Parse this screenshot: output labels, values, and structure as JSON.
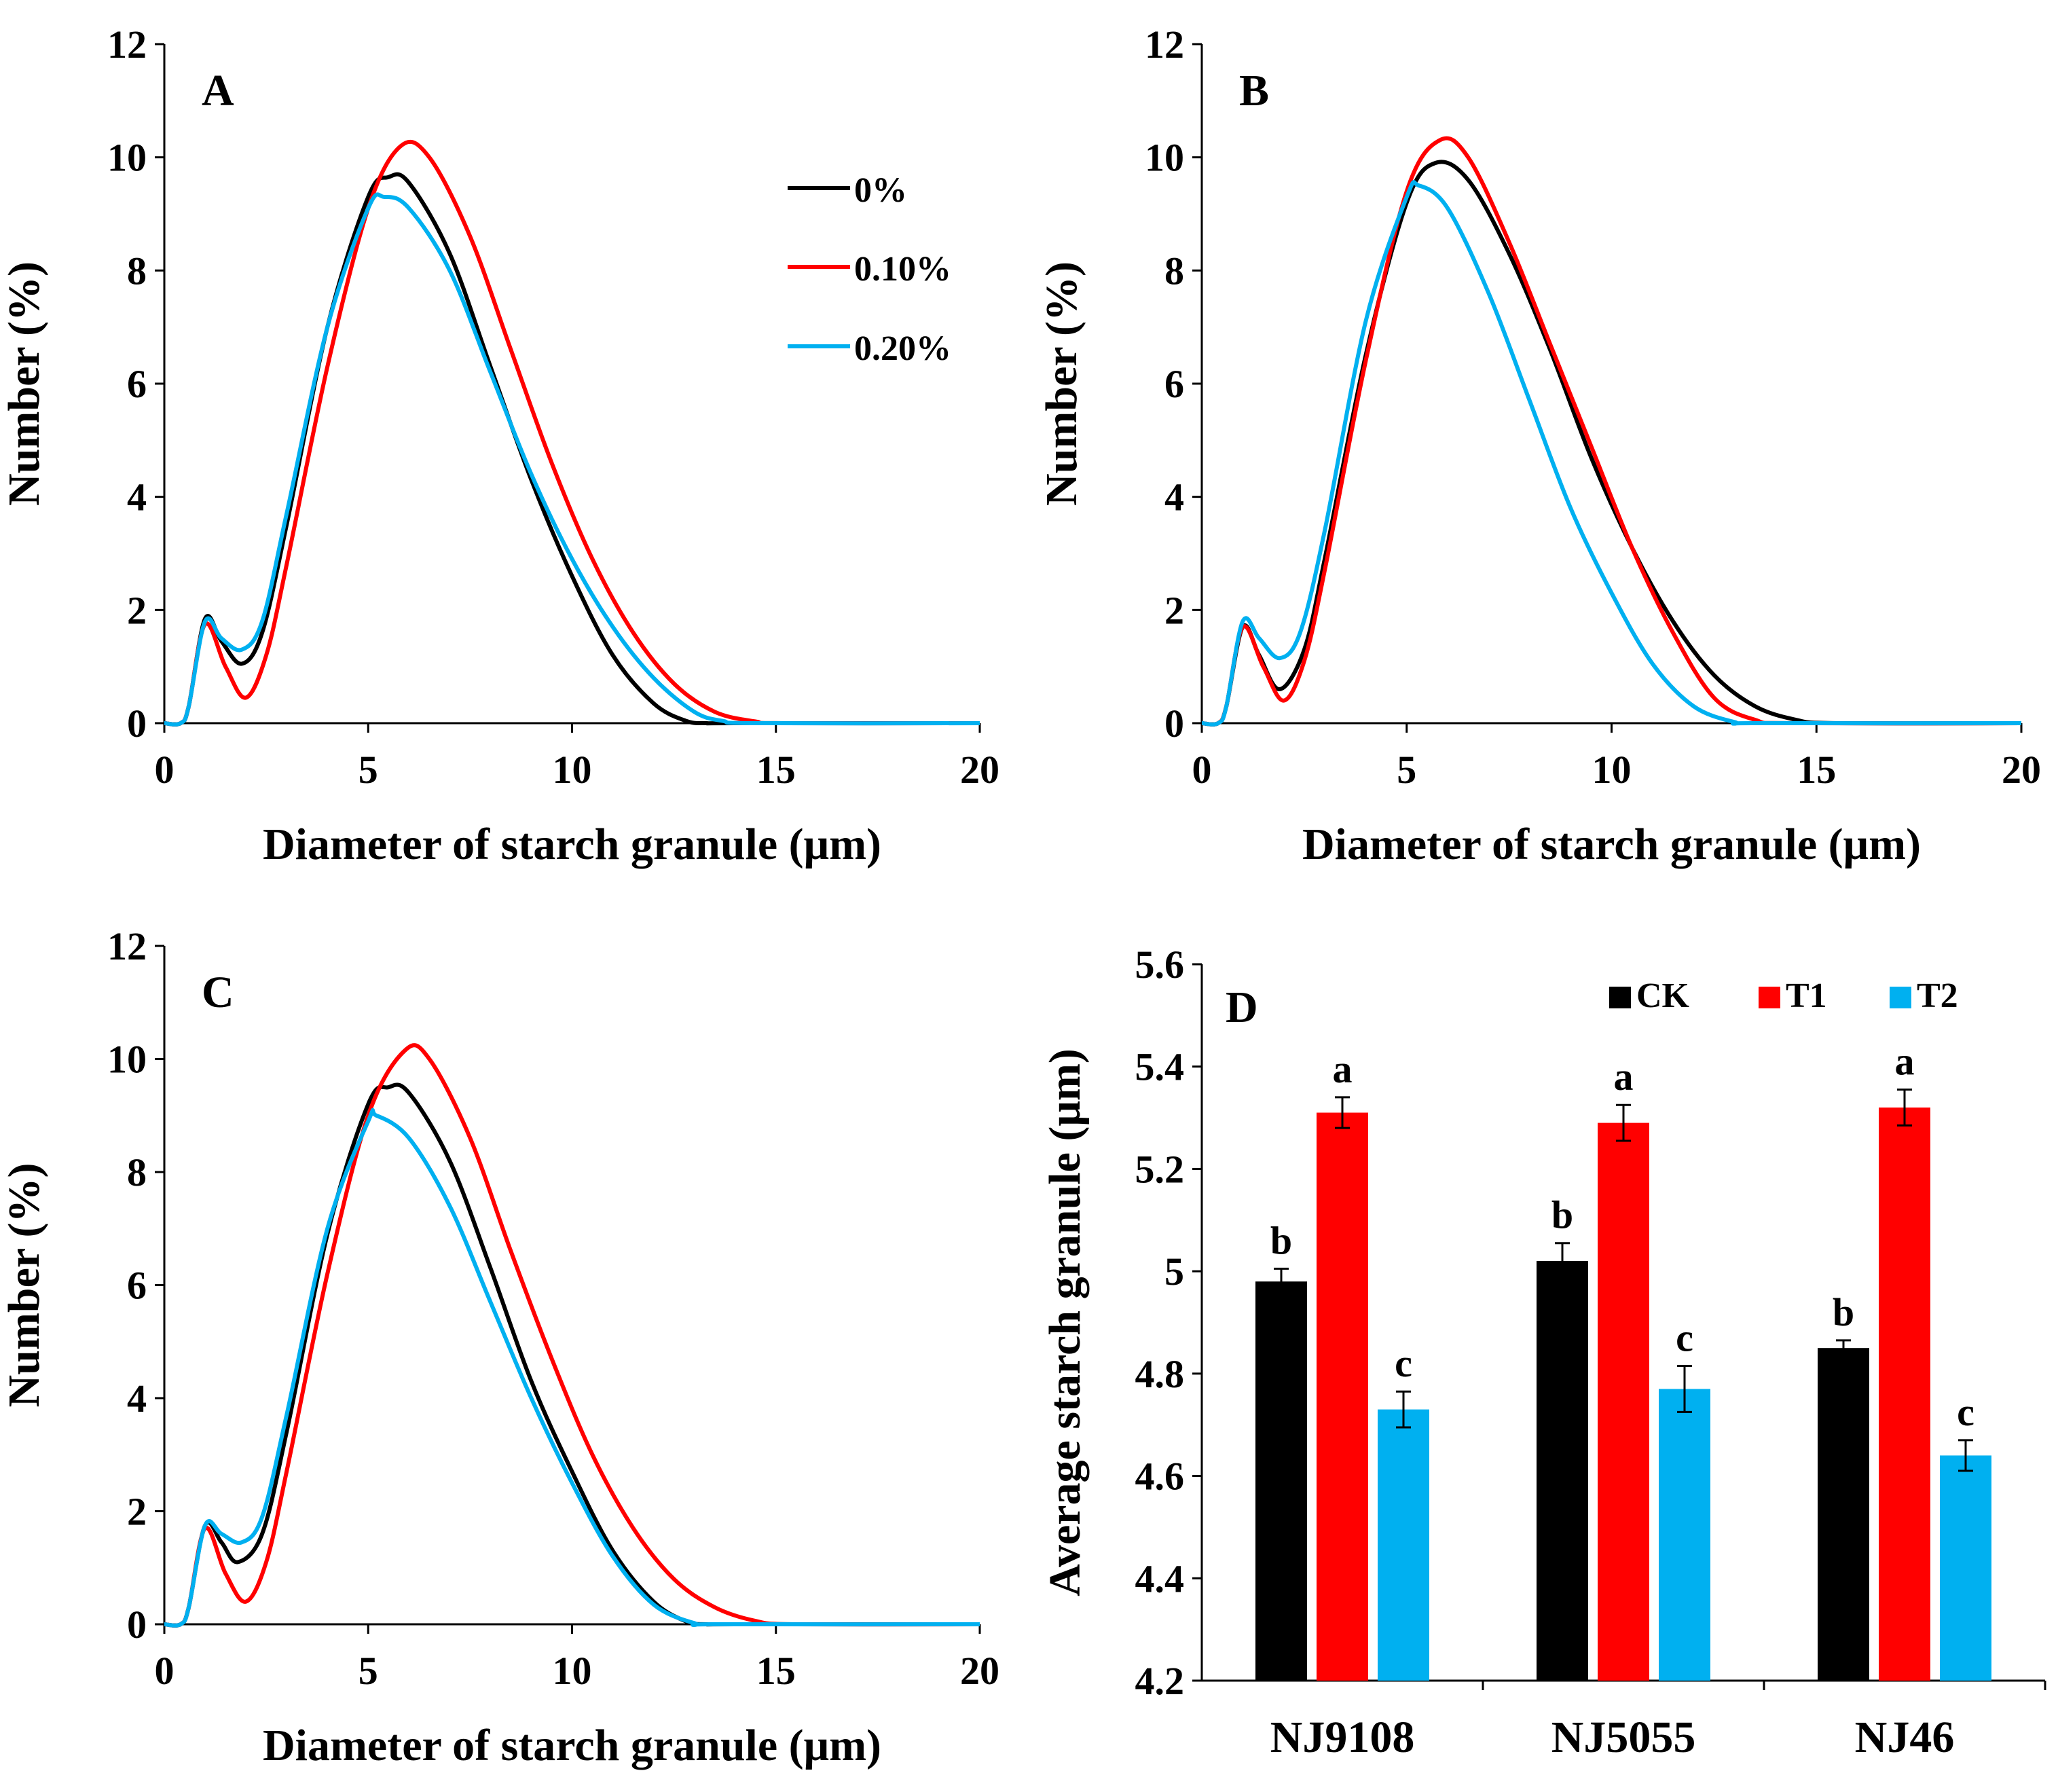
{
  "colors": {
    "c0": "#000000",
    "c1": "#ff0000",
    "c2": "#00b0f0"
  },
  "chart_data": [
    {
      "type": "line",
      "panel_label": "A",
      "xlabel": "Diameter of starch granule (μm)",
      "ylabel": "Number (%)",
      "xlim": [
        0,
        20
      ],
      "ylim": [
        0,
        12
      ],
      "xticks": [
        "0",
        "5",
        "10",
        "15",
        "20"
      ],
      "yticks": [
        "0",
        "2",
        "4",
        "6",
        "8",
        "10",
        "12"
      ],
      "legend": [
        "0%",
        "0.10%",
        "0.20%"
      ],
      "series": [
        {
          "name": "0%",
          "x": [
            0,
            0.4,
            0.6,
            1.0,
            1.4,
            1.9,
            2.4,
            3.0,
            4.0,
            5.0,
            5.5,
            6.0,
            7.0,
            8.0,
            9.0,
            10.0,
            11.0,
            12.0,
            12.8,
            13.3,
            14.0,
            20
          ],
          "y": [
            0,
            0,
            0.3,
            1.85,
            1.45,
            1.05,
            1.6,
            3.5,
            7.0,
            9.3,
            9.65,
            9.55,
            8.3,
            6.3,
            4.3,
            2.6,
            1.2,
            0.35,
            0.04,
            0,
            0,
            0
          ]
        },
        {
          "name": "0.10%",
          "x": [
            0,
            0.4,
            0.6,
            1.0,
            1.5,
            2.0,
            2.5,
            3.0,
            4.0,
            5.0,
            5.8,
            6.5,
            7.5,
            8.5,
            9.5,
            10.5,
            11.5,
            12.5,
            13.5,
            14.5,
            15.2,
            20
          ],
          "y": [
            0,
            0,
            0.3,
            1.75,
            1.0,
            0.45,
            1.2,
            2.8,
            6.3,
            9.1,
            10.2,
            10.0,
            8.6,
            6.6,
            4.6,
            2.9,
            1.6,
            0.7,
            0.2,
            0.03,
            0,
            0
          ]
        },
        {
          "name": "0.20%",
          "x": [
            0,
            0.4,
            0.6,
            1.0,
            1.4,
            1.9,
            2.4,
            3.0,
            4.0,
            5.0,
            5.4,
            6.0,
            7.0,
            8.0,
            9.0,
            10.0,
            11.0,
            12.0,
            13.0,
            13.7,
            14.5,
            20
          ],
          "y": [
            0,
            0,
            0.3,
            1.8,
            1.5,
            1.3,
            1.8,
            3.7,
            7.0,
            9.1,
            9.3,
            9.1,
            8.0,
            6.2,
            4.4,
            2.9,
            1.7,
            0.8,
            0.2,
            0.04,
            0,
            0
          ]
        }
      ]
    },
    {
      "type": "line",
      "panel_label": "B",
      "xlabel": "Diameter of starch granule (μm)",
      "ylabel": "Number (%)",
      "xlim": [
        0,
        20
      ],
      "ylim": [
        0,
        12
      ],
      "xticks": [
        "0",
        "5",
        "10",
        "15",
        "20"
      ],
      "yticks": [
        "0",
        "2",
        "4",
        "6",
        "8",
        "10",
        "12"
      ],
      "series": [
        {
          "name": "0%",
          "x": [
            0,
            0.4,
            0.6,
            1.0,
            1.4,
            1.9,
            2.5,
            3.0,
            4.0,
            5.0,
            5.7,
            6.5,
            7.5,
            8.5,
            9.5,
            10.5,
            11.5,
            12.5,
            13.5,
            14.5,
            15.5,
            20
          ],
          "y": [
            0,
            0,
            0.3,
            1.7,
            1.2,
            0.6,
            1.3,
            2.9,
            6.5,
            9.2,
            9.9,
            9.6,
            8.3,
            6.6,
            4.7,
            3.1,
            1.8,
            0.85,
            0.3,
            0.06,
            0,
            0
          ]
        },
        {
          "name": "0.10%",
          "x": [
            0,
            0.4,
            0.6,
            1.0,
            1.5,
            2.0,
            2.5,
            3.0,
            4.0,
            5.0,
            5.8,
            6.5,
            7.5,
            8.5,
            9.5,
            10.5,
            11.5,
            12.5,
            13.5,
            14.5,
            20
          ],
          "y": [
            0,
            0,
            0.3,
            1.7,
            1.0,
            0.4,
            1.1,
            2.7,
            6.4,
            9.4,
            10.3,
            10.0,
            8.5,
            6.7,
            4.9,
            3.1,
            1.6,
            0.45,
            0.06,
            0,
            0
          ]
        },
        {
          "name": "0.20%",
          "x": [
            0,
            0.4,
            0.6,
            1.0,
            1.4,
            1.9,
            2.4,
            3.0,
            4.0,
            5.0,
            5.3,
            6.0,
            7.0,
            8.0,
            9.0,
            10.0,
            11.0,
            12.0,
            13.0,
            13.6,
            20
          ],
          "y": [
            0,
            0,
            0.3,
            1.8,
            1.5,
            1.15,
            1.6,
            3.4,
            7.1,
            9.3,
            9.5,
            9.1,
            7.6,
            5.7,
            3.8,
            2.3,
            1.05,
            0.3,
            0.02,
            0,
            0
          ]
        }
      ]
    },
    {
      "type": "line",
      "panel_label": "C",
      "xlabel": "Diameter of starch granule (μm)",
      "ylabel": "Number (%)",
      "xlim": [
        0,
        20
      ],
      "ylim": [
        0,
        12
      ],
      "xticks": [
        "0",
        "5",
        "10",
        "15",
        "20"
      ],
      "yticks": [
        "0",
        "2",
        "4",
        "6",
        "8",
        "10",
        "12"
      ],
      "series": [
        {
          "name": "0%",
          "x": [
            0,
            0.4,
            0.6,
            1.0,
            1.4,
            1.8,
            2.4,
            3.0,
            4.0,
            5.0,
            5.5,
            6.0,
            7.0,
            8.0,
            9.0,
            10.0,
            11.0,
            12.0,
            12.8,
            13.3,
            14.0,
            20
          ],
          "y": [
            0,
            0,
            0.3,
            1.75,
            1.45,
            1.1,
            1.6,
            3.4,
            6.9,
            9.2,
            9.5,
            9.4,
            8.2,
            6.3,
            4.3,
            2.7,
            1.3,
            0.4,
            0.05,
            0,
            0,
            0
          ]
        },
        {
          "name": "0.10%",
          "x": [
            0,
            0.4,
            0.6,
            1.0,
            1.5,
            2.0,
            2.5,
            3.0,
            4.0,
            5.0,
            5.9,
            6.5,
            7.5,
            8.5,
            9.5,
            10.5,
            11.5,
            12.5,
            13.5,
            14.5,
            15.5,
            20
          ],
          "y": [
            0,
            0,
            0.3,
            1.7,
            0.9,
            0.4,
            1.1,
            2.7,
            6.2,
            9.0,
            10.15,
            10.0,
            8.6,
            6.6,
            4.7,
            3.0,
            1.7,
            0.8,
            0.3,
            0.06,
            0,
            0
          ]
        },
        {
          "name": "0.20%",
          "x": [
            0,
            0.4,
            0.6,
            1.0,
            1.4,
            1.9,
            2.4,
            3.0,
            4.0,
            5.0,
            5.2,
            6.0,
            7.0,
            8.0,
            9.0,
            10.0,
            11.0,
            12.0,
            13.0,
            13.6,
            20
          ],
          "y": [
            0,
            0,
            0.3,
            1.75,
            1.6,
            1.45,
            1.9,
            3.7,
            7.0,
            8.9,
            9.0,
            8.6,
            7.4,
            5.7,
            4.0,
            2.5,
            1.2,
            0.35,
            0.02,
            0,
            0
          ]
        }
      ]
    },
    {
      "type": "bar",
      "panel_label": "D",
      "ylabel": "Average starch granule (μm)",
      "ylim": [
        4.2,
        5.6
      ],
      "yticks": [
        "4.2",
        "4.4",
        "4.6",
        "4.8",
        "5",
        "5.2",
        "5.4",
        "5.6"
      ],
      "categories": [
        "NJ9108",
        "NJ5055",
        "NJ46"
      ],
      "legend": [
        "CK",
        "T1",
        "T2"
      ],
      "series": [
        {
          "name": "CK",
          "values": [
            4.98,
            5.02,
            4.85
          ],
          "errors": [
            0.025,
            0.035,
            0.015
          ],
          "letters": [
            "b",
            "b",
            "b"
          ]
        },
        {
          "name": "T1",
          "values": [
            5.31,
            5.29,
            5.32
          ],
          "errors": [
            0.03,
            0.035,
            0.035
          ],
          "letters": [
            "a",
            "a",
            "a"
          ]
        },
        {
          "name": "T2",
          "values": [
            4.73,
            4.77,
            4.64
          ],
          "errors": [
            0.035,
            0.045,
            0.03
          ],
          "letters": [
            "c",
            "c",
            "c"
          ]
        }
      ]
    }
  ]
}
